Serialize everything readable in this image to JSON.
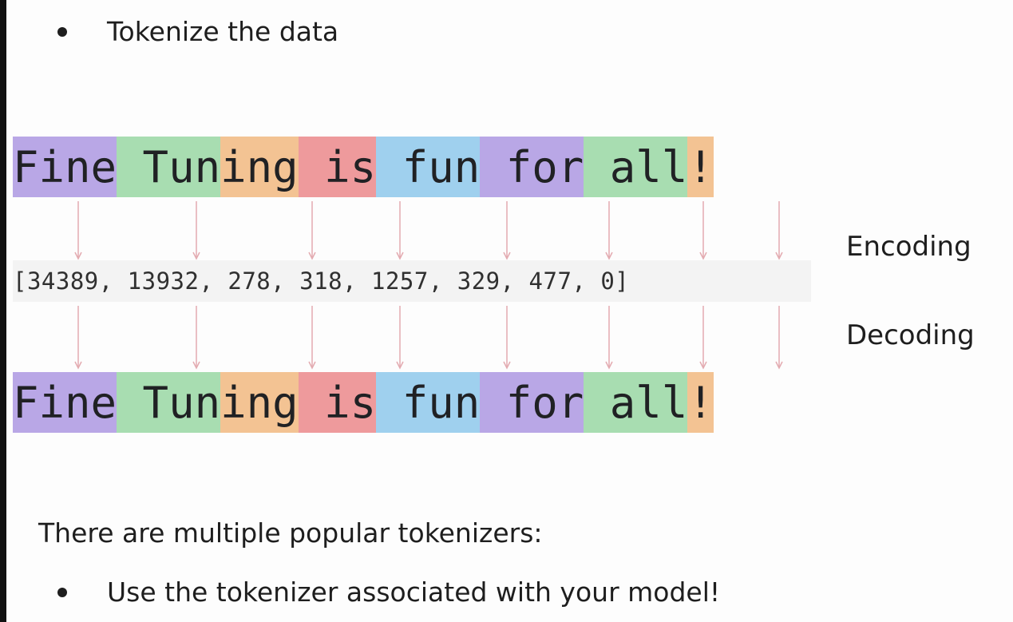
{
  "bullets_top": {
    "text": "Tokenize the data"
  },
  "tokens": [
    {
      "text": "Fine",
      "color": "#b9a7e6"
    },
    {
      "text": " Tun",
      "color": "#a8ddb1"
    },
    {
      "text": "ing",
      "color": "#f3c393"
    },
    {
      "text": " is",
      "color": "#ee9a9c"
    },
    {
      "text": " fun",
      "color": "#9fd0ee"
    },
    {
      "text": " for",
      "color": "#b9a7e6"
    },
    {
      "text": " all",
      "color": "#a8ddb1"
    },
    {
      "text": "!",
      "color": "#f3c393"
    }
  ],
  "token_ids": "[34389, 13932, 278, 318, 1257, 329, 477, 0]",
  "labels": {
    "encoding": "Encoding",
    "decoding": "Decoding"
  },
  "arrow_color": "#e3aab0",
  "footer": {
    "line": "There are multiple popular tokenizers:",
    "bullet": "Use the tokenizer associated with your model!"
  }
}
